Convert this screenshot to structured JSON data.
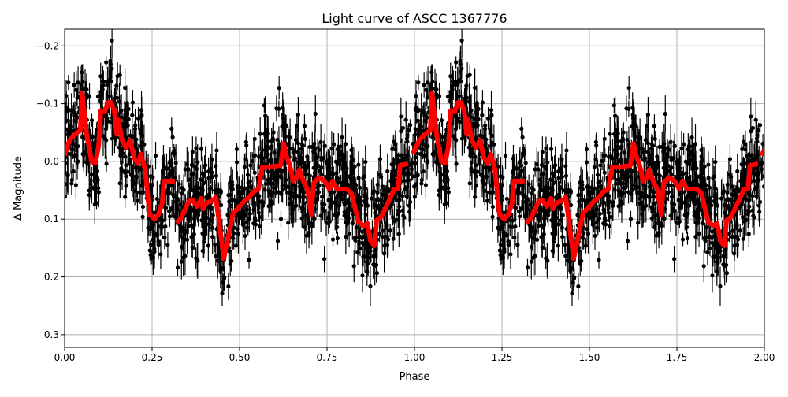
{
  "chart_data": {
    "type": "scatter",
    "title": "Light curve of ASCC 1367776",
    "xlabel": "Phase",
    "ylabel": "Δ Magnitude",
    "xlim": [
      0.0,
      2.0
    ],
    "ylim": [
      0.322,
      -0.229
    ],
    "y_inverted": true,
    "grid": true,
    "x_ticks": [
      "0.00",
      "0.25",
      "0.50",
      "0.75",
      "1.00",
      "1.25",
      "1.50",
      "1.75",
      "2.00"
    ],
    "x_tick_values": [
      0,
      0.25,
      0.5,
      0.75,
      1.0,
      1.25,
      1.5,
      1.75,
      2.0
    ],
    "y_ticks": [
      "−0.2",
      "−0.1",
      "0.0",
      "0.1",
      "0.2",
      "0.3"
    ],
    "y_tick_values": [
      -0.2,
      -0.1,
      0.0,
      0.1,
      0.2,
      0.3
    ],
    "colors": {
      "points": "#000000",
      "binned_curve": "#ff0000",
      "grid": "#b0b0b0"
    },
    "binned_curve": {
      "segments": [
        [
          [
            0.0,
            -0.011
          ],
          [
            0.014,
            -0.037
          ],
          [
            0.036,
            -0.05
          ],
          [
            0.045,
            -0.054
          ],
          [
            0.05,
            -0.118
          ],
          [
            0.063,
            -0.047
          ],
          [
            0.077,
            0.0
          ],
          [
            0.088,
            0.003
          ],
          [
            0.097,
            -0.027
          ],
          [
            0.104,
            -0.088
          ],
          [
            0.115,
            -0.086
          ],
          [
            0.124,
            -0.102
          ],
          [
            0.133,
            -0.102
          ],
          [
            0.142,
            -0.088
          ],
          [
            0.149,
            -0.047
          ],
          [
            0.153,
            -0.072
          ],
          [
            0.164,
            -0.037
          ],
          [
            0.176,
            -0.023
          ],
          [
            0.187,
            -0.037
          ],
          [
            0.198,
            -0.007
          ],
          [
            0.209,
            0.004
          ],
          [
            0.218,
            -0.013
          ],
          [
            0.23,
            0.014
          ],
          [
            0.243,
            0.092
          ],
          [
            0.257,
            0.1
          ],
          [
            0.268,
            0.092
          ],
          [
            0.279,
            0.072
          ],
          [
            0.284,
            0.034
          ],
          [
            0.315,
            0.034
          ]
        ],
        [
          [
            0.32,
            0.107
          ],
          [
            0.333,
            0.098
          ],
          [
            0.345,
            0.082
          ],
          [
            0.356,
            0.068
          ],
          [
            0.367,
            0.068
          ],
          [
            0.378,
            0.078
          ],
          [
            0.39,
            0.064
          ],
          [
            0.396,
            0.082
          ],
          [
            0.405,
            0.072
          ],
          [
            0.423,
            0.068
          ],
          [
            0.432,
            0.062
          ],
          [
            0.441,
            0.102
          ],
          [
            0.455,
            0.168
          ],
          [
            0.468,
            0.13
          ],
          [
            0.482,
            0.089
          ],
          [
            0.495,
            0.082
          ],
          [
            0.514,
            0.068
          ],
          [
            0.527,
            0.062
          ],
          [
            0.541,
            0.052
          ],
          [
            0.554,
            0.048
          ],
          [
            0.565,
            0.01
          ],
          [
            0.581,
            0.01
          ],
          [
            0.617,
            0.007
          ],
          [
            0.626,
            -0.031
          ],
          [
            0.635,
            -0.007
          ],
          [
            0.644,
            0.007
          ],
          [
            0.653,
            0.034
          ],
          [
            0.662,
            0.029
          ],
          [
            0.671,
            0.014
          ],
          [
            0.682,
            0.034
          ],
          [
            0.694,
            0.048
          ],
          [
            0.705,
            0.092
          ],
          [
            0.712,
            0.037
          ],
          [
            0.727,
            0.028
          ],
          [
            0.743,
            0.034
          ],
          [
            0.757,
            0.048
          ],
          [
            0.766,
            0.034
          ],
          [
            0.779,
            0.048
          ],
          [
            0.806,
            0.048
          ],
          [
            0.82,
            0.055
          ],
          [
            0.829,
            0.078
          ],
          [
            0.84,
            0.105
          ],
          [
            0.856,
            0.112
          ],
          [
            0.865,
            0.107
          ],
          [
            0.874,
            0.137
          ],
          [
            0.885,
            0.146
          ],
          [
            0.892,
            0.102
          ],
          [
            0.905,
            0.096
          ],
          [
            0.919,
            0.078
          ],
          [
            0.932,
            0.062
          ],
          [
            0.941,
            0.048
          ],
          [
            0.953,
            0.048
          ],
          [
            0.959,
            0.007
          ],
          [
            0.982,
            0.004
          ]
        ],
        [
          [
            0.995,
            -0.013
          ],
          [
            1.014,
            -0.037
          ],
          [
            1.036,
            -0.05
          ],
          [
            1.045,
            -0.054
          ],
          [
            1.05,
            -0.118
          ],
          [
            1.063,
            -0.047
          ],
          [
            1.077,
            0.0
          ],
          [
            1.088,
            0.003
          ],
          [
            1.097,
            -0.027
          ],
          [
            1.104,
            -0.088
          ],
          [
            1.115,
            -0.086
          ],
          [
            1.124,
            -0.102
          ],
          [
            1.133,
            -0.102
          ],
          [
            1.142,
            -0.088
          ],
          [
            1.149,
            -0.047
          ],
          [
            1.153,
            -0.072
          ],
          [
            1.164,
            -0.037
          ],
          [
            1.176,
            -0.023
          ],
          [
            1.187,
            -0.037
          ],
          [
            1.198,
            -0.007
          ],
          [
            1.209,
            0.004
          ],
          [
            1.218,
            -0.013
          ],
          [
            1.23,
            0.014
          ],
          [
            1.243,
            0.092
          ],
          [
            1.257,
            0.1
          ],
          [
            1.268,
            0.092
          ],
          [
            1.279,
            0.072
          ],
          [
            1.284,
            0.034
          ],
          [
            1.315,
            0.034
          ]
        ],
        [
          [
            1.32,
            0.107
          ],
          [
            1.333,
            0.098
          ],
          [
            1.345,
            0.082
          ],
          [
            1.356,
            0.068
          ],
          [
            1.367,
            0.068
          ],
          [
            1.378,
            0.078
          ],
          [
            1.39,
            0.064
          ],
          [
            1.396,
            0.082
          ],
          [
            1.405,
            0.072
          ],
          [
            1.423,
            0.068
          ],
          [
            1.432,
            0.062
          ],
          [
            1.441,
            0.102
          ],
          [
            1.455,
            0.168
          ],
          [
            1.468,
            0.13
          ],
          [
            1.482,
            0.089
          ],
          [
            1.495,
            0.082
          ],
          [
            1.514,
            0.068
          ],
          [
            1.527,
            0.062
          ],
          [
            1.541,
            0.052
          ],
          [
            1.554,
            0.048
          ],
          [
            1.565,
            0.01
          ],
          [
            1.581,
            0.01
          ],
          [
            1.617,
            0.007
          ],
          [
            1.626,
            -0.031
          ],
          [
            1.635,
            -0.007
          ],
          [
            1.644,
            0.007
          ],
          [
            1.653,
            0.034
          ],
          [
            1.662,
            0.029
          ],
          [
            1.671,
            0.014
          ],
          [
            1.682,
            0.034
          ],
          [
            1.694,
            0.048
          ],
          [
            1.705,
            0.092
          ],
          [
            1.712,
            0.037
          ],
          [
            1.727,
            0.028
          ],
          [
            1.743,
            0.034
          ],
          [
            1.757,
            0.048
          ],
          [
            1.766,
            0.034
          ],
          [
            1.779,
            0.048
          ],
          [
            1.806,
            0.048
          ],
          [
            1.82,
            0.055
          ],
          [
            1.829,
            0.078
          ],
          [
            1.84,
            0.105
          ],
          [
            1.856,
            0.112
          ],
          [
            1.865,
            0.107
          ],
          [
            1.874,
            0.137
          ],
          [
            1.885,
            0.146
          ],
          [
            1.892,
            0.102
          ],
          [
            1.905,
            0.096
          ],
          [
            1.919,
            0.078
          ],
          [
            1.932,
            0.062
          ],
          [
            1.941,
            0.048
          ],
          [
            1.953,
            0.048
          ],
          [
            1.959,
            0.007
          ],
          [
            1.982,
            0.004
          ]
        ],
        [
          [
            1.992,
            -0.01
          ],
          [
            2.0,
            -0.02
          ]
        ]
      ]
    }
  }
}
